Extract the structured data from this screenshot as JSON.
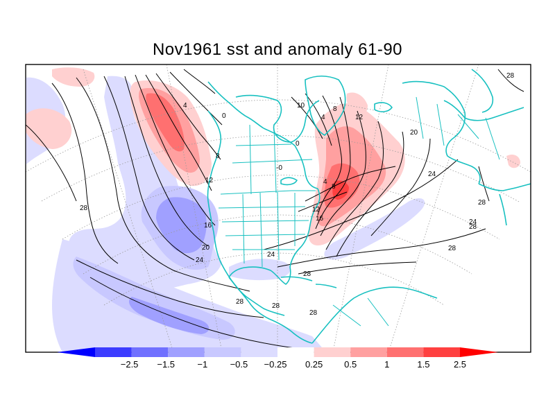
{
  "title": "Nov1961 sst and anomaly 61-90",
  "colorbar": {
    "labels": [
      "−2.5",
      "−1.5",
      "−1",
      "−0.5",
      "−0.25",
      "0.25",
      "0.5",
      "1",
      "1.5",
      "2.5"
    ],
    "colors": [
      "#0000ff",
      "#3c3cff",
      "#7070ff",
      "#a0a0ff",
      "#c8c8ff",
      "#dcdcff",
      "#ffffff",
      "#ffd0d0",
      "#ffa0a0",
      "#ff7070",
      "#ff4040",
      "#ff0000"
    ]
  },
  "contour_labels": {
    "north_pacific": [
      "4",
      "0",
      "8",
      "12",
      "16",
      "20",
      "24"
    ],
    "pacific_west": "28",
    "atlantic": [
      "10",
      "4",
      "8",
      "12",
      "0",
      "-0",
      "4",
      "8",
      "12",
      "16",
      "20",
      "24",
      "28",
      "28",
      "24",
      "28",
      "28"
    ],
    "gulf": [
      "24",
      "28",
      "28",
      "28",
      "28"
    ]
  },
  "colors": {
    "coastline": "#17c0c0",
    "contour": "#000000",
    "frame": "#000000"
  }
}
